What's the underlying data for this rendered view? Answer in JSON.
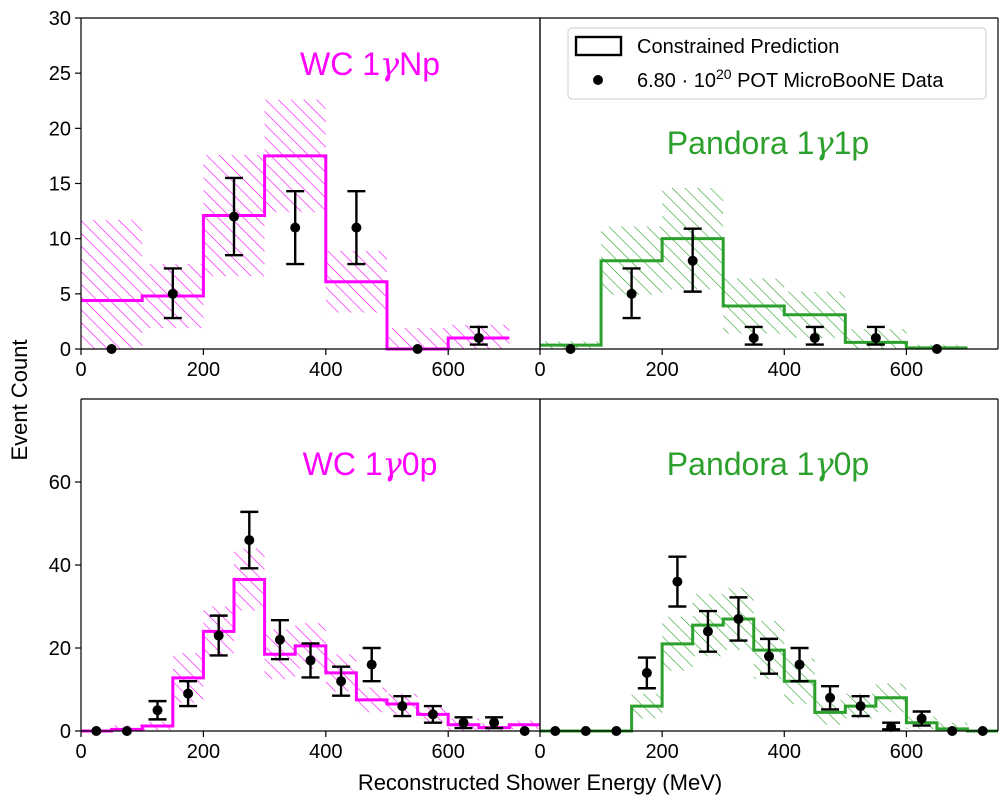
{
  "figure": {
    "ylabel": "Event Count",
    "xlabel": "Reconstructed Shower Energy (MeV)"
  },
  "legend": {
    "prediction_label": "Constrained Prediction",
    "data_label_prefix": "6.80 · 10",
    "data_label_exp": "20",
    "data_label_suffix": " POT MicroBooNE Data"
  },
  "colors": {
    "wc": "#ff00ff",
    "pandora": "#2ca02c",
    "data": "#000000"
  },
  "chart_data": [
    {
      "id": "wc_1g_np",
      "type": "bar",
      "title_prefix": "WC 1",
      "title_suffix": "Np",
      "color_key": "wc",
      "xlim": [
        0,
        750
      ],
      "ylim": [
        0,
        30
      ],
      "xticks": [
        0,
        200,
        400,
        600
      ],
      "yticks": [
        0,
        5,
        10,
        15,
        20,
        25,
        30
      ],
      "bin_edges": [
        0,
        100,
        200,
        300,
        400,
        500,
        600,
        700
      ],
      "prediction": [
        4.4,
        4.8,
        12.1,
        17.5,
        6.1,
        0.0,
        1.0
      ],
      "pred_err": [
        7.3,
        2.9,
        5.5,
        5.1,
        2.8,
        1.9,
        1.2
      ],
      "data_x": [
        50,
        150,
        250,
        350,
        450,
        550,
        650
      ],
      "data_y": [
        0,
        5,
        12,
        11,
        11,
        0,
        1
      ],
      "data_err_lo": [
        0,
        2.2,
        3.5,
        3.3,
        3.3,
        0,
        0.6
      ],
      "data_err_hi": [
        0,
        2.3,
        3.5,
        3.3,
        3.3,
        0,
        1.0
      ]
    },
    {
      "id": "pandora_1g_1p",
      "type": "bar",
      "title_prefix": "Pandora 1",
      "title_suffix": "1p",
      "color_key": "pandora",
      "xlim": [
        0,
        750
      ],
      "ylim": [
        0,
        30
      ],
      "xticks": [
        0,
        200,
        400,
        600
      ],
      "yticks": [],
      "bin_edges": [
        0,
        100,
        200,
        300,
        400,
        500,
        600,
        700
      ],
      "prediction": [
        0.35,
        8.0,
        10.0,
        3.9,
        3.1,
        0.6,
        0.1
      ],
      "pred_err": [
        0.35,
        3.1,
        4.6,
        2.5,
        2.1,
        1.2,
        0.3
      ],
      "data_x": [
        50,
        150,
        250,
        350,
        450,
        550,
        650
      ],
      "data_y": [
        0,
        5,
        8,
        1,
        1,
        1,
        0
      ],
      "data_err_lo": [
        0,
        2.2,
        2.8,
        0.6,
        0.6,
        0.6,
        0
      ],
      "data_err_hi": [
        0,
        2.3,
        2.9,
        1.0,
        1.0,
        1.0,
        0
      ]
    },
    {
      "id": "wc_1g_0p",
      "type": "bar",
      "title_prefix": "WC 1",
      "title_suffix": "0p",
      "color_key": "wc",
      "xlim": [
        0,
        750
      ],
      "ylim": [
        0,
        80
      ],
      "xticks": [
        0,
        200,
        400,
        600
      ],
      "yticks": [
        0,
        20,
        40,
        60
      ],
      "bin_edges": [
        0,
        50,
        100,
        150,
        200,
        250,
        300,
        350,
        400,
        450,
        500,
        550,
        600,
        650,
        700,
        750
      ],
      "prediction": [
        0.0,
        0.4,
        1.2,
        12.8,
        24.0,
        36.5,
        18.5,
        20.5,
        14.0,
        7.5,
        6.5,
        4.0,
        1.5,
        0.8,
        1.5
      ],
      "pred_err": [
        0.0,
        1.0,
        1.0,
        6.0,
        6.0,
        7.5,
        6.0,
        5.5,
        4.5,
        3.0,
        2.5,
        2.0,
        1.5,
        1.0,
        1.0
      ],
      "data_x": [
        25,
        75,
        125,
        175,
        225,
        275,
        325,
        375,
        425,
        475,
        525,
        575,
        625,
        675,
        725
      ],
      "data_y": [
        0,
        0,
        5,
        9,
        23,
        46,
        22,
        17,
        12,
        16,
        6,
        4,
        2,
        2,
        0
      ],
      "data_err_lo": [
        0,
        0,
        2.2,
        3.0,
        4.8,
        6.8,
        4.7,
        4.1,
        3.5,
        4.0,
        2.4,
        2.0,
        1.3,
        1.3,
        0
      ],
      "data_err_hi": [
        0,
        0,
        2.2,
        3.0,
        4.8,
        6.8,
        4.7,
        4.1,
        3.5,
        4.0,
        2.4,
        2.0,
        1.3,
        1.3,
        0
      ]
    },
    {
      "id": "pandora_1g_0p",
      "type": "bar",
      "title_prefix": "Pandora 1",
      "title_suffix": "0p",
      "color_key": "pandora",
      "xlim": [
        0,
        750
      ],
      "ylim": [
        0,
        80
      ],
      "xticks": [
        0,
        200,
        400,
        600
      ],
      "yticks": [],
      "bin_edges": [
        0,
        50,
        100,
        150,
        200,
        250,
        300,
        350,
        400,
        450,
        500,
        550,
        600,
        650,
        700,
        750
      ],
      "prediction": [
        0.0,
        0.0,
        0.0,
        6.0,
        21.0,
        25.5,
        27.0,
        19.5,
        12.0,
        4.5,
        6.0,
        8.0,
        2.0,
        0.5,
        0.0
      ],
      "pred_err": [
        0.0,
        0.0,
        0.0,
        3.0,
        6.5,
        7.5,
        7.5,
        7.0,
        5.5,
        3.0,
        3.0,
        3.5,
        1.5,
        1.5,
        0.0
      ],
      "data_x": [
        25,
        75,
        125,
        175,
        225,
        275,
        325,
        375,
        425,
        475,
        525,
        575,
        625,
        675,
        725
      ],
      "data_y": [
        0,
        0,
        0,
        14,
        36,
        24,
        27,
        18,
        16,
        8,
        6,
        1,
        3,
        0,
        0
      ],
      "data_err_lo": [
        0,
        0,
        0,
        3.7,
        6.0,
        4.9,
        5.2,
        4.2,
        4.0,
        2.8,
        2.4,
        0.6,
        1.7,
        0,
        0
      ],
      "data_err_hi": [
        0,
        0,
        0,
        3.7,
        6.0,
        4.9,
        5.2,
        4.2,
        4.0,
        2.8,
        2.4,
        1.0,
        1.7,
        0,
        0
      ]
    }
  ]
}
